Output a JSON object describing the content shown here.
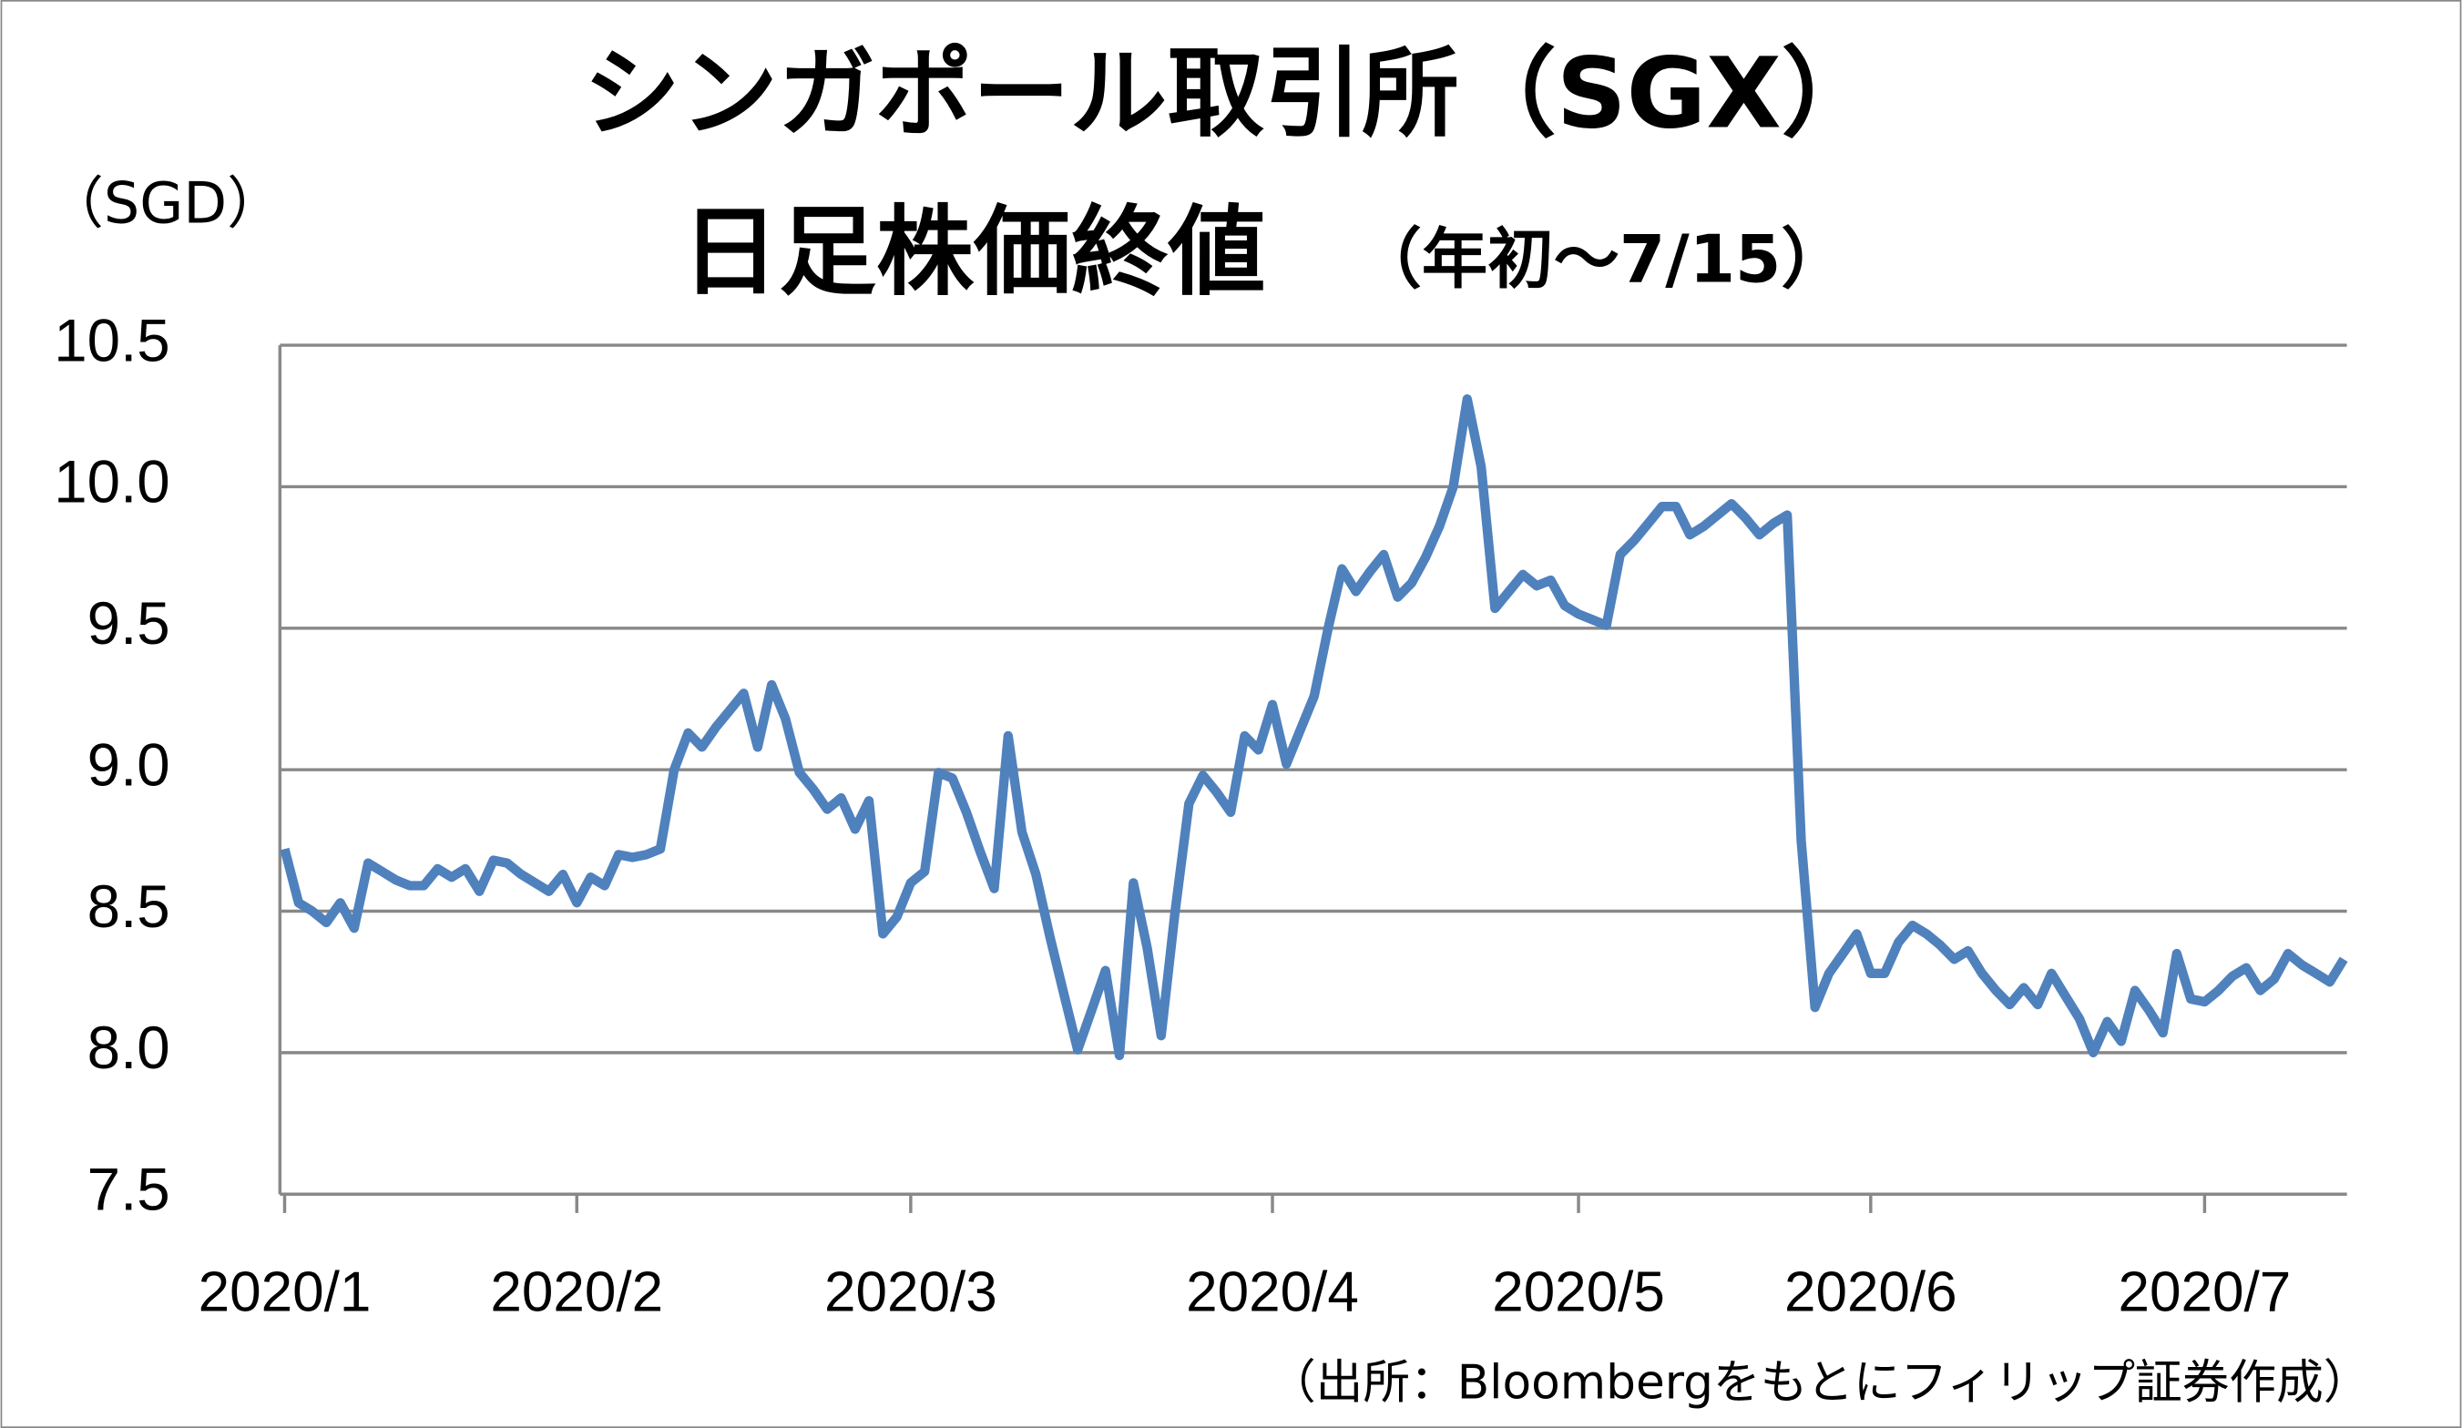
{
  "chart_data": {
    "type": "line",
    "title": [
      "シンガポール取引所（SGX）",
      "日足株価終値"
    ],
    "subtitle": "（年初～7/15）",
    "y_label": "（SGD）",
    "source": "（出所：Bloombergをもとにフィリップ証券作成）",
    "ylim": [
      7.5,
      10.5
    ],
    "yticks": [
      7.5,
      {
        "value": 8,
        "label": "8.0"
      },
      8.5,
      {
        "value": 9,
        "label": "9.0"
      },
      9.5,
      {
        "value": 10,
        "label": "10.0"
      },
      10.5
    ],
    "grid": true,
    "categories": [
      "2020/1",
      null,
      null,
      null,
      null,
      null,
      null,
      null,
      null,
      null,
      null,
      null,
      null,
      null,
      null,
      null,
      null,
      null,
      null,
      null,
      null,
      "2020/2",
      null,
      null,
      null,
      null,
      null,
      null,
      null,
      null,
      null,
      null,
      null,
      null,
      null,
      null,
      null,
      null,
      null,
      null,
      null,
      null,
      null,
      null,
      null,
      "2020/3",
      null,
      null,
      null,
      null,
      null,
      null,
      null,
      null,
      null,
      null,
      null,
      null,
      null,
      null,
      null,
      null,
      null,
      null,
      null,
      null,
      null,
      null,
      null,
      null,
      null,
      "2020/4",
      null,
      null,
      null,
      null,
      null,
      null,
      null,
      null,
      null,
      null,
      null,
      null,
      null,
      null,
      null,
      null,
      null,
      null,
      null,
      null,
      null,
      "2020/5",
      null,
      null,
      null,
      null,
      null,
      null,
      null,
      null,
      null,
      null,
      null,
      null,
      null,
      null,
      null,
      null,
      null,
      null,
      null,
      null,
      "2020/6",
      null,
      null,
      null,
      null,
      null,
      null,
      null,
      null,
      null,
      null,
      null,
      null,
      null,
      null,
      null,
      null,
      null,
      null,
      null,
      null,
      null,
      null,
      null,
      "2020/7",
      null,
      null,
      null,
      null,
      null,
      null,
      null,
      null,
      null,
      null
    ],
    "series": [
      {
        "name": "SGX",
        "color": "#4f81bd",
        "values": [
          8.72,
          8.53,
          8.5,
          8.46,
          8.53,
          8.44,
          8.67,
          8.64,
          8.61,
          8.59,
          8.59,
          8.65,
          8.62,
          8.65,
          8.57,
          8.68,
          8.67,
          8.63,
          8.6,
          8.57,
          8.63,
          8.53,
          8.62,
          8.59,
          8.7,
          8.69,
          8.7,
          8.72,
          9.0,
          9.13,
          9.08,
          9.15,
          9.21,
          9.27,
          9.08,
          9.3,
          9.18,
          8.99,
          8.93,
          8.86,
          8.9,
          8.79,
          8.89,
          8.42,
          8.48,
          8.6,
          8.64,
          8.99,
          8.97,
          8.85,
          8.71,
          8.58,
          9.12,
          8.78,
          8.63,
          8.41,
          8.21,
          8.01,
          8.15,
          8.29,
          7.99,
          8.6,
          8.37,
          8.06,
          8.5,
          8.88,
          8.98,
          8.92,
          8.85,
          9.12,
          9.07,
          9.23,
          9.02,
          9.14,
          9.26,
          9.5,
          9.71,
          9.63,
          9.7,
          9.76,
          9.61,
          9.66,
          9.75,
          9.86,
          10.0,
          10.31,
          10.07,
          9.57,
          9.63,
          9.69,
          9.65,
          9.67,
          9.58,
          9.55,
          9.53,
          9.51,
          9.76,
          9.81,
          9.87,
          9.93,
          9.93,
          9.83,
          9.86,
          9.9,
          9.94,
          9.89,
          9.83,
          9.87,
          9.9,
          8.75,
          8.16,
          8.28,
          8.35,
          8.42,
          8.28,
          8.28,
          8.39,
          8.45,
          8.42,
          8.38,
          8.33,
          8.36,
          8.28,
          8.22,
          8.17,
          8.23,
          8.17,
          8.28,
          8.2,
          8.12,
          8.0,
          8.11,
          8.04,
          8.22,
          8.15,
          8.07,
          8.35,
          8.19,
          8.18,
          8.22,
          8.27,
          8.3,
          8.22,
          8.26,
          8.35,
          8.31,
          8.28,
          8.25,
          8.33
        ]
      }
    ]
  }
}
